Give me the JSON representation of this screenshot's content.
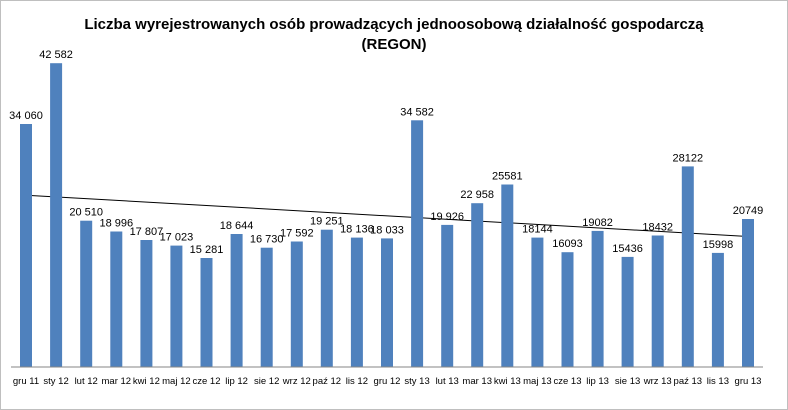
{
  "chart_data": {
    "type": "bar",
    "title_line1": "Liczba wyrejestrowanych osób prowadzących jednoosobową działalność gospodarczą",
    "title_line2": "(REGON)",
    "xlabel": "",
    "ylabel": "",
    "ylim": [
      0,
      45000
    ],
    "grid": false,
    "legend": "none",
    "trendline": "linear",
    "bar_color": "#4f81bd",
    "trend_color": "#000000",
    "categories": [
      "gru 11",
      "sty 12",
      "lut 12",
      "mar 12",
      "kwi 12",
      "maj 12",
      "cze 12",
      "lip 12",
      "sie 12",
      "wrz 12",
      "paź 12",
      "lis 12",
      "gru 12",
      "sty 13",
      "lut 13",
      "mar 13",
      "kwi 13",
      "maj 13",
      "cze 13",
      "lip 13",
      "sie 13",
      "wrz 13",
      "paź 13",
      "lis 13",
      "gru 13"
    ],
    "values": [
      34060,
      42582,
      20510,
      18996,
      17807,
      17023,
      15281,
      18644,
      16730,
      17592,
      19251,
      18136,
      18033,
      34582,
      19926,
      22958,
      25581,
      18144,
      16093,
      19082,
      15436,
      18432,
      28122,
      15998,
      20749
    ],
    "data_labels": [
      "34 060",
      "42 582",
      "20 510",
      "18 996",
      "17 807",
      "17 023",
      "15 281",
      "18 644",
      "16 730",
      "17 592",
      "19 251",
      "18 136",
      "18 033",
      "34 582",
      "19 926",
      "22 958",
      "25581",
      "18144",
      "16093",
      "19082",
      "15436",
      "18432",
      "28122",
      "15998",
      "20749"
    ]
  }
}
